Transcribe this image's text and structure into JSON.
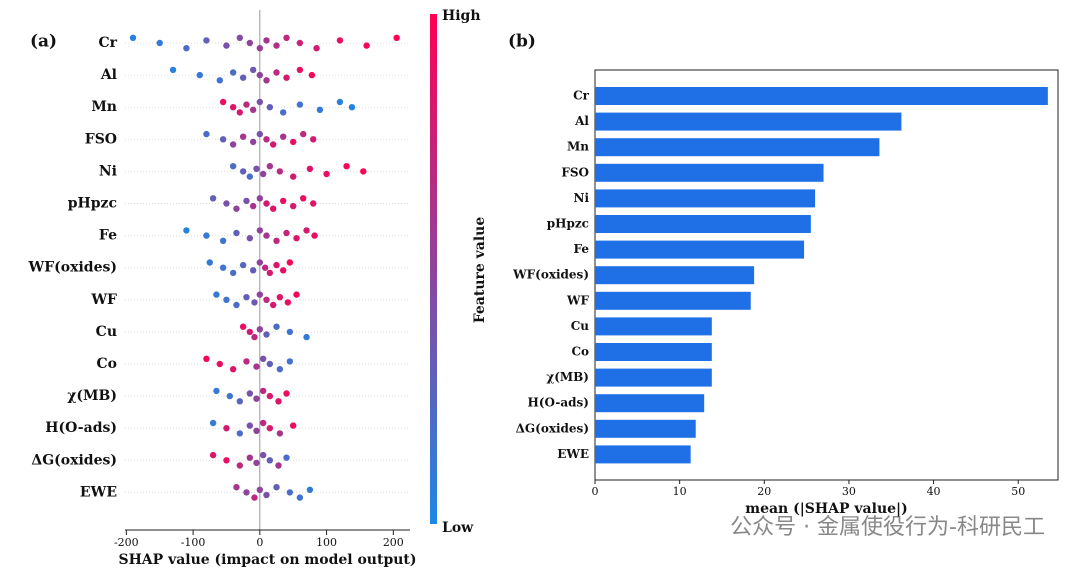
{
  "panel_labels": [
    "(a)",
    "(b)"
  ],
  "watermark": "公众号 · 金属使役行为-科研民工",
  "chart_data": [
    {
      "type": "beeswarm",
      "xlabel": "SHAP value (impact on model output)",
      "xlim": [
        -202,
        225
      ],
      "xticks": [
        -200,
        -100,
        0,
        100,
        200
      ],
      "zero_line": true,
      "colorbar": {
        "title": "Feature value",
        "high": "High",
        "low": "Low",
        "colors": [
          "#1e88e5",
          "#ff0052"
        ]
      },
      "series": [
        {
          "name": "Cr",
          "values": [
            -190,
            -150,
            -110,
            -80,
            -50,
            -30,
            -15,
            0,
            10,
            25,
            40,
            60,
            85,
            120,
            160,
            205
          ],
          "feature_values": [
            0.05,
            0.1,
            0.2,
            0.3,
            0.4,
            0.45,
            0.5,
            0.55,
            0.6,
            0.65,
            0.7,
            0.75,
            0.8,
            0.9,
            0.95,
            1
          ]
        },
        {
          "name": "Al",
          "values": [
            -130,
            -90,
            -60,
            -40,
            -25,
            -10,
            0,
            10,
            25,
            40,
            60,
            78
          ],
          "feature_values": [
            0.05,
            0.1,
            0.15,
            0.2,
            0.3,
            0.35,
            0.5,
            0.6,
            0.7,
            0.8,
            0.9,
            0.95
          ]
        },
        {
          "name": "Mn",
          "values": [
            -55,
            -40,
            -30,
            -20,
            -10,
            0,
            15,
            35,
            60,
            90,
            120,
            138
          ],
          "feature_values": [
            0.9,
            0.85,
            0.8,
            0.7,
            0.6,
            0.4,
            0.3,
            0.2,
            0.15,
            0.1,
            0.05,
            0.02
          ]
        },
        {
          "name": "FSO",
          "values": [
            -80,
            -55,
            -40,
            -25,
            -10,
            0,
            10,
            20,
            35,
            50,
            65,
            80
          ],
          "feature_values": [
            0.2,
            0.3,
            0.5,
            0.6,
            0.5,
            0.4,
            0.7,
            0.8,
            0.6,
            0.9,
            0.7,
            0.8
          ]
        },
        {
          "name": "Ni",
          "values": [
            -40,
            -25,
            -15,
            -5,
            5,
            15,
            30,
            50,
            75,
            100,
            130,
            155
          ],
          "feature_values": [
            0.2,
            0.3,
            0.2,
            0.4,
            0.5,
            0.6,
            0.7,
            0.8,
            0.85,
            0.9,
            0.95,
            1
          ]
        },
        {
          "name": "pHpzc",
          "values": [
            -70,
            -50,
            -35,
            -20,
            -10,
            0,
            10,
            20,
            35,
            50,
            65,
            80
          ],
          "feature_values": [
            0.3,
            0.4,
            0.5,
            0.4,
            0.6,
            0.5,
            0.8,
            0.85,
            0.9,
            0.8,
            0.9,
            0.85
          ]
        },
        {
          "name": "Fe",
          "values": [
            -110,
            -80,
            -55,
            -35,
            -15,
            0,
            10,
            25,
            40,
            55,
            70,
            82
          ],
          "feature_values": [
            0.05,
            0.1,
            0.15,
            0.3,
            0.4,
            0.5,
            0.6,
            0.7,
            0.75,
            0.85,
            0.8,
            0.9
          ]
        },
        {
          "name": "WF(oxides)",
          "values": [
            -75,
            -55,
            -40,
            -25,
            -10,
            0,
            8,
            15,
            25,
            35,
            45
          ],
          "feature_values": [
            0.1,
            0.15,
            0.2,
            0.25,
            0.3,
            0.5,
            0.7,
            0.8,
            0.85,
            0.9,
            0.95
          ]
        },
        {
          "name": "WF",
          "values": [
            -65,
            -50,
            -35,
            -20,
            -8,
            0,
            10,
            20,
            30,
            42,
            55
          ],
          "feature_values": [
            0.1,
            0.15,
            0.2,
            0.3,
            0.35,
            0.5,
            0.7,
            0.8,
            0.85,
            0.9,
            0.95
          ]
        },
        {
          "name": "Cu",
          "values": [
            -25,
            -15,
            -8,
            0,
            10,
            25,
            45,
            70
          ],
          "feature_values": [
            0.9,
            0.8,
            0.7,
            0.5,
            0.3,
            0.2,
            0.15,
            0.1
          ]
        },
        {
          "name": "Co",
          "values": [
            -80,
            -60,
            -40,
            -20,
            -5,
            5,
            15,
            30,
            45
          ],
          "feature_values": [
            0.95,
            0.9,
            0.85,
            0.7,
            0.6,
            0.4,
            0.3,
            0.2,
            0.15
          ]
        },
        {
          "name": "χ(MB)",
          "values": [
            -65,
            -45,
            -30,
            -15,
            -5,
            5,
            15,
            28,
            40
          ],
          "feature_values": [
            0.1,
            0.15,
            0.25,
            0.4,
            0.5,
            0.7,
            0.8,
            0.85,
            0.9
          ]
        },
        {
          "name": "H(O-ads)",
          "values": [
            -70,
            -50,
            -30,
            -15,
            -5,
            5,
            15,
            30,
            50
          ],
          "feature_values": [
            0.1,
            0.8,
            0.2,
            0.4,
            0.5,
            0.7,
            0.8,
            0.6,
            0.9
          ]
        },
        {
          "name": "ΔG(oxides)",
          "values": [
            -70,
            -50,
            -30,
            -15,
            -5,
            5,
            15,
            28,
            40
          ],
          "feature_values": [
            0.85,
            0.9,
            0.7,
            0.6,
            0.5,
            0.4,
            0.3,
            0.6,
            0.2
          ]
        },
        {
          "name": "EWE",
          "values": [
            -35,
            -20,
            -8,
            0,
            10,
            25,
            45,
            60,
            75
          ],
          "feature_values": [
            0.6,
            0.5,
            0.7,
            0.5,
            0.4,
            0.3,
            0.2,
            0.15,
            0.1
          ]
        }
      ]
    },
    {
      "type": "barh",
      "xlabel": "mean (|SHAP value|)",
      "categories": [
        "Cr",
        "Al",
        "Mn",
        "FSO",
        "Ni",
        "pHpzc",
        "Fe",
        "WF(oxides)",
        "WF",
        "Cu",
        "Co",
        "χ(MB)",
        "H(O-ads)",
        "ΔG(oxides)",
        "EWE"
      ],
      "values": [
        53.5,
        36.2,
        33.6,
        27.0,
        26.0,
        25.5,
        24.7,
        18.8,
        18.4,
        13.8,
        13.8,
        13.8,
        12.9,
        11.9,
        11.3
      ],
      "color": "#1f6fe6",
      "xlim": [
        0,
        54.7
      ],
      "xticks": [
        0,
        10,
        20,
        30,
        40,
        50
      ]
    }
  ]
}
